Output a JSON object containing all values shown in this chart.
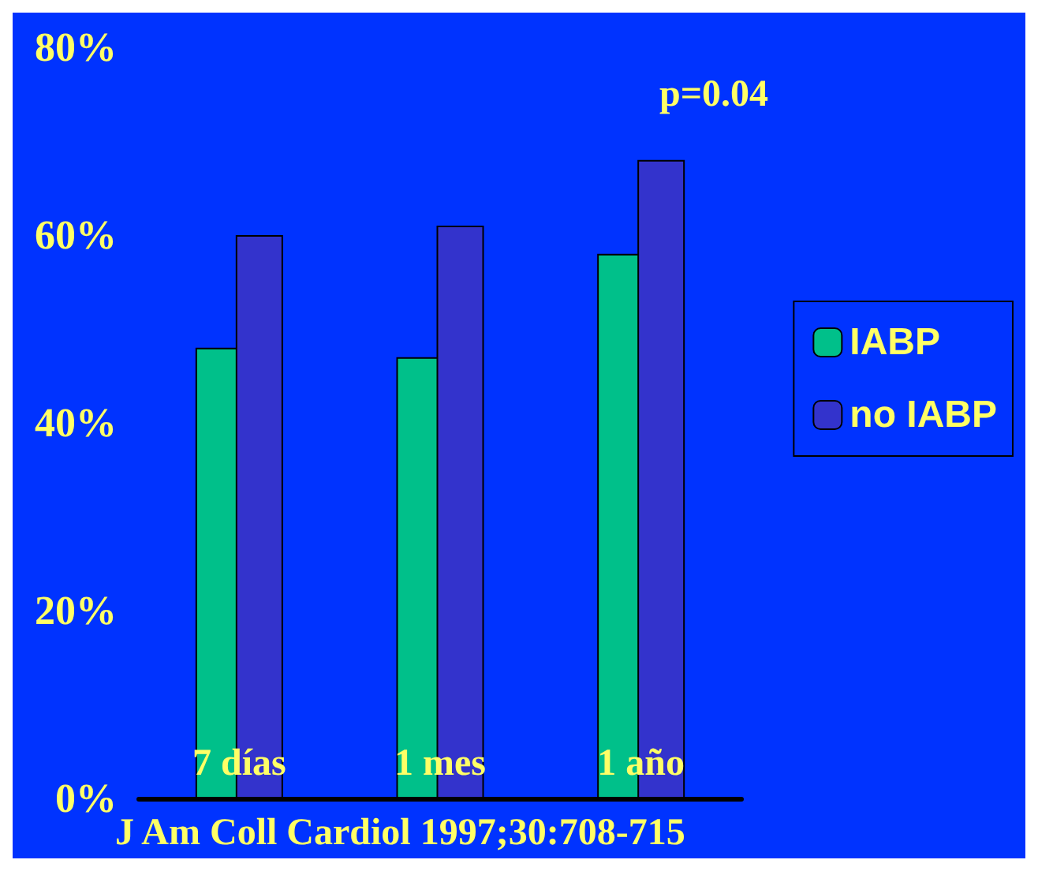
{
  "chart_data": {
    "type": "bar",
    "categories": [
      "7 días",
      "1 mes",
      "1 año"
    ],
    "series": [
      {
        "name": "IABP",
        "color": "#00c08a",
        "values": [
          48,
          47,
          58
        ]
      },
      {
        "name": "no IABP",
        "color": "#3333cc",
        "values": [
          60,
          61,
          68
        ]
      }
    ],
    "ylim": [
      0,
      80
    ],
    "yticks": [
      {
        "value": 0,
        "label": "0%"
      },
      {
        "value": 20,
        "label": "20%"
      },
      {
        "value": 40,
        "label": "40%"
      },
      {
        "value": 60,
        "label": "60%"
      },
      {
        "value": 80,
        "label": "80%"
      }
    ],
    "grid": false,
    "legend": "right",
    "annotations": [
      "p=0.04",
      "J Am Coll Cardiol 1997;30:708-715"
    ]
  }
}
